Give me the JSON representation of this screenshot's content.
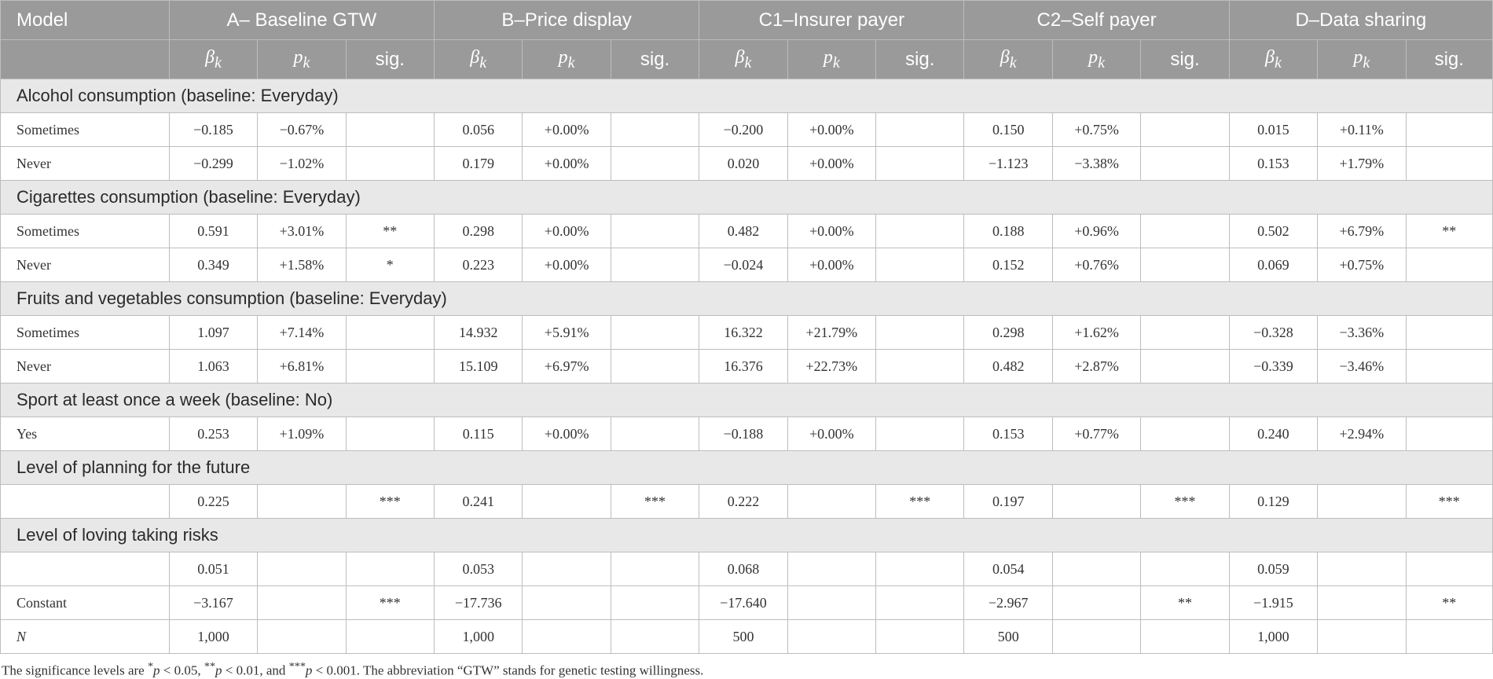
{
  "header": {
    "model_label": "Model",
    "groups": [
      "A– Baseline GTW",
      "B–Price display",
      "C1–Insurer payer",
      "C2–Self payer",
      "D–Data sharing"
    ],
    "sub": {
      "beta": "βk",
      "p": "pk",
      "sig": "sig."
    }
  },
  "sections": [
    {
      "title": "Alcohol consumption (baseline: Everyday)",
      "rows": [
        {
          "label": "Sometimes",
          "cells": [
            [
              "−0.185",
              "−0.67%",
              ""
            ],
            [
              "0.056",
              "+0.00%",
              ""
            ],
            [
              "−0.200",
              "+0.00%",
              ""
            ],
            [
              "0.150",
              "+0.75%",
              ""
            ],
            [
              "0.015",
              "+0.11%",
              ""
            ]
          ]
        },
        {
          "label": "Never",
          "cells": [
            [
              "−0.299",
              "−1.02%",
              ""
            ],
            [
              "0.179",
              "+0.00%",
              ""
            ],
            [
              "0.020",
              "+0.00%",
              ""
            ],
            [
              "−1.123",
              "−3.38%",
              ""
            ],
            [
              "0.153",
              "+1.79%",
              ""
            ]
          ]
        }
      ]
    },
    {
      "title": "Cigarettes consumption (baseline: Everyday)",
      "rows": [
        {
          "label": "Sometimes",
          "cells": [
            [
              "0.591",
              "+3.01%",
              "**"
            ],
            [
              "0.298",
              "+0.00%",
              ""
            ],
            [
              "0.482",
              "+0.00%",
              ""
            ],
            [
              "0.188",
              "+0.96%",
              ""
            ],
            [
              "0.502",
              "+6.79%",
              "**"
            ]
          ]
        },
        {
          "label": "Never",
          "cells": [
            [
              "0.349",
              "+1.58%",
              "*"
            ],
            [
              "0.223",
              "+0.00%",
              ""
            ],
            [
              "−0.024",
              "+0.00%",
              ""
            ],
            [
              "0.152",
              "+0.76%",
              ""
            ],
            [
              "0.069",
              "+0.75%",
              ""
            ]
          ]
        }
      ]
    },
    {
      "title": "Fruits and vegetables consumption (baseline: Everyday)",
      "rows": [
        {
          "label": "Sometimes",
          "cells": [
            [
              "1.097",
              "+7.14%",
              ""
            ],
            [
              "14.932",
              "+5.91%",
              ""
            ],
            [
              "16.322",
              "+21.79%",
              ""
            ],
            [
              "0.298",
              "+1.62%",
              ""
            ],
            [
              "−0.328",
              "−3.36%",
              ""
            ]
          ]
        },
        {
          "label": "Never",
          "cells": [
            [
              "1.063",
              "+6.81%",
              ""
            ],
            [
              "15.109",
              "+6.97%",
              ""
            ],
            [
              "16.376",
              "+22.73%",
              ""
            ],
            [
              "0.482",
              "+2.87%",
              ""
            ],
            [
              "−0.339",
              "−3.46%",
              ""
            ]
          ]
        }
      ]
    },
    {
      "title": "Sport at least once a week (baseline: No)",
      "rows": [
        {
          "label": "Yes",
          "cells": [
            [
              "0.253",
              "+1.09%",
              ""
            ],
            [
              "0.115",
              "+0.00%",
              ""
            ],
            [
              "−0.188",
              "+0.00%",
              ""
            ],
            [
              "0.153",
              "+0.77%",
              ""
            ],
            [
              "0.240",
              "+2.94%",
              ""
            ]
          ]
        }
      ]
    },
    {
      "title": "Level of planning for the future",
      "rows": [
        {
          "label": "",
          "cells": [
            [
              "0.225",
              "",
              "***"
            ],
            [
              "0.241",
              "",
              "***"
            ],
            [
              "0.222",
              "",
              "***"
            ],
            [
              "0.197",
              "",
              "***"
            ],
            [
              "0.129",
              "",
              "***"
            ]
          ]
        }
      ]
    },
    {
      "title": "Level of loving taking risks",
      "rows": [
        {
          "label": "",
          "cells": [
            [
              "0.051",
              "",
              ""
            ],
            [
              "0.053",
              "",
              ""
            ],
            [
              "0.068",
              "",
              ""
            ],
            [
              "0.054",
              "",
              ""
            ],
            [
              "0.059",
              "",
              ""
            ]
          ]
        },
        {
          "label": "Constant",
          "cells": [
            [
              "−3.167",
              "",
              "***"
            ],
            [
              "−17.736",
              "",
              ""
            ],
            [
              "−17.640",
              "",
              ""
            ],
            [
              "−2.967",
              "",
              "**"
            ],
            [
              "−1.915",
              "",
              "**"
            ]
          ]
        },
        {
          "label": "N",
          "italic": true,
          "cells": [
            [
              "1,000",
              "",
              ""
            ],
            [
              "1,000",
              "",
              ""
            ],
            [
              "500",
              "",
              ""
            ],
            [
              "500",
              "",
              ""
            ],
            [
              "1,000",
              "",
              ""
            ]
          ]
        }
      ]
    }
  ],
  "note": {
    "prefix": "The significance levels are ",
    "star1": "*",
    "p": "p",
    "lt1": " < 0.05, ",
    "star2": "**",
    "lt2": " < 0.01, and ",
    "star3": "***",
    "lt3": " < 0.001. The abbreviation “GTW” stands for genetic testing willingness."
  }
}
